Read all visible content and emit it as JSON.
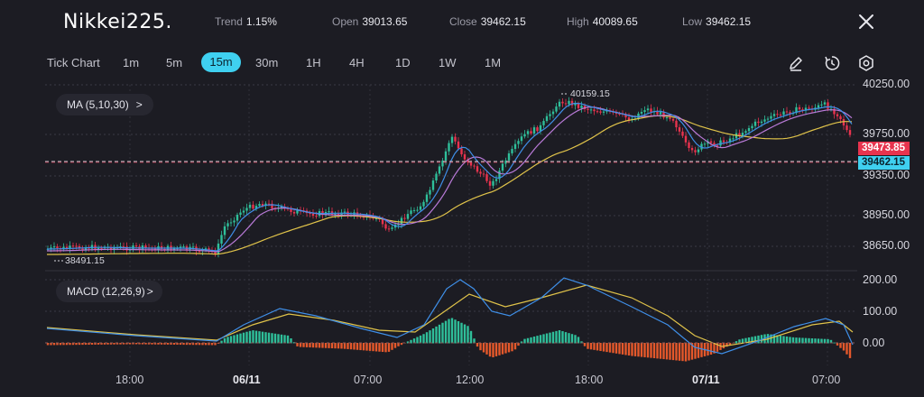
{
  "header": {
    "title": "Nikkei225.",
    "stats": [
      {
        "label": "Trend",
        "value": "1.15%"
      },
      {
        "label": "Open",
        "value": "39013.65"
      },
      {
        "label": "Close",
        "value": "39462.15"
      },
      {
        "label": "High",
        "value": "40089.65"
      },
      {
        "label": "Low",
        "value": "39462.15"
      }
    ],
    "close_icon": "close-icon"
  },
  "toolbar": {
    "chart_type_label": "Tick Chart",
    "intervals": [
      "1m",
      "5m",
      "15m",
      "30m",
      "1H",
      "4H",
      "1D",
      "1W",
      "1M"
    ],
    "active_interval": "15m",
    "tools": [
      "pencil-icon",
      "timer-icon",
      "settings-icon"
    ]
  },
  "indicators": {
    "ma_label": "MA (5,10,30)",
    "ma_arrow": ">",
    "macd_label": "MACD (12,26,9)",
    "macd_arrow": ">"
  },
  "price_axis": {
    "labels": [
      "40250.00",
      "39750.00",
      "39350.00",
      "38950.00",
      "38650.00"
    ],
    "tag_upper": "39473.85",
    "tag_lower": "39462.15",
    "colors": {
      "tag_upper": "#e8334e",
      "tag_lower": "#3fd0f0"
    }
  },
  "macd_axis": {
    "labels": [
      "200.00",
      "100.00",
      "0.00"
    ]
  },
  "annotations": {
    "high_marker": "40159.15",
    "low_marker": "38491.15"
  },
  "time_axis": {
    "labels": [
      {
        "text": "18:00",
        "bold": false
      },
      {
        "text": "06/11",
        "bold": true
      },
      {
        "text": "07:00",
        "bold": false
      },
      {
        "text": "12:00",
        "bold": false
      },
      {
        "text": "18:00",
        "bold": false
      },
      {
        "text": "07/11",
        "bold": true
      },
      {
        "text": "07:00",
        "bold": false
      }
    ]
  },
  "colors": {
    "up": "#2fbf9a",
    "down": "#e8334e",
    "ma5": "#3f8fe8",
    "ma10": "#b97ad8",
    "ma30": "#e0c34a",
    "macd_line": "#3f8fe8",
    "signal_line": "#e0c34a",
    "hist_up": "#2fbf9a",
    "hist_down": "#e5582b",
    "accent": "#3fd0f0"
  }
}
